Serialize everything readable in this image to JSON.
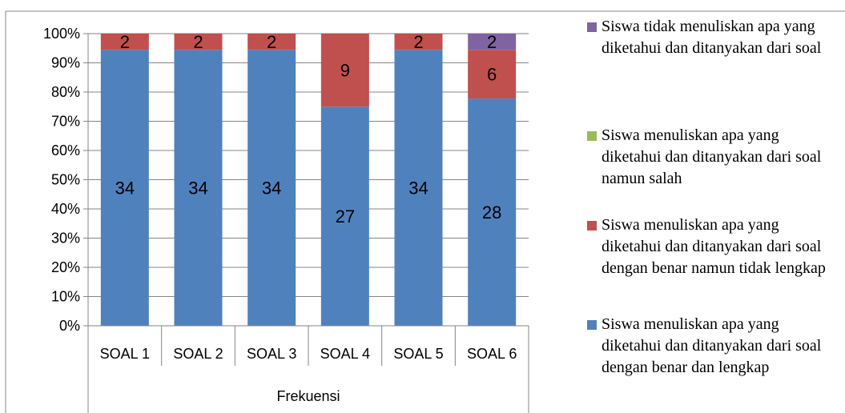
{
  "chart_data": {
    "type": "bar",
    "stacked": true,
    "percent_stacked": true,
    "group_label": "Frekuensi",
    "categories": [
      "SOAL 1",
      "SOAL 2",
      "SOAL 3",
      "SOAL 4",
      "SOAL 5",
      "SOAL 6"
    ],
    "yticks": [
      "0%",
      "10%",
      "20%",
      "30%",
      "40%",
      "50%",
      "60%",
      "70%",
      "80%",
      "90%",
      "100%"
    ],
    "ylim": [
      0,
      100
    ],
    "grid": true,
    "legend_position": "right",
    "series": [
      {
        "name": "Siswa menuliskan apa yang diketahui dan ditanyakan dari soal dengan benar dan lengkap",
        "color": "#4F81BD",
        "values": [
          34,
          34,
          34,
          27,
          34,
          28
        ]
      },
      {
        "name": "Siswa menuliskan apa yang diketahui dan ditanyakan dari soal dengan benar namun tidak lengkap",
        "color": "#C0504D",
        "values": [
          2,
          2,
          2,
          9,
          2,
          6
        ]
      },
      {
        "name": "Siswa menuliskan apa yang diketahui dan ditanyakan dari soal namun salah",
        "color": "#9BBB59",
        "values": [
          0,
          0,
          0,
          0,
          0,
          0
        ]
      },
      {
        "name": "Siswa tidak menuliskan apa yang diketahui dan ditanyakan dari soal",
        "color": "#8064A2",
        "values": [
          0,
          0,
          0,
          0,
          0,
          2
        ]
      }
    ]
  }
}
